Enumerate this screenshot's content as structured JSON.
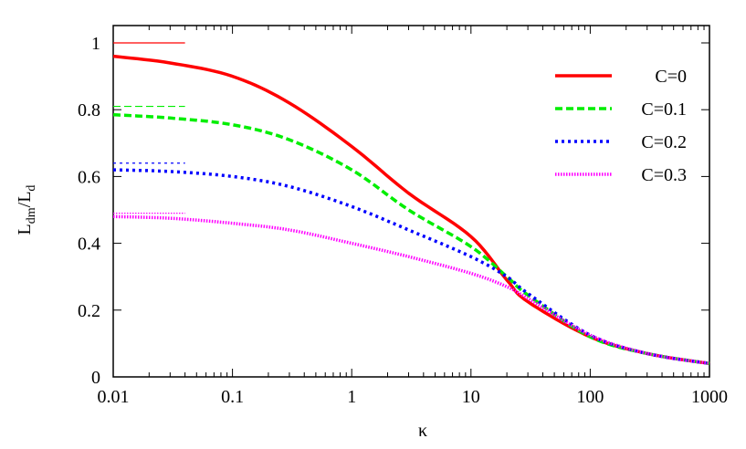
{
  "chart_data": {
    "type": "line",
    "title": "",
    "xlabel": "κ",
    "ylabel_main": "L",
    "ylabel_sub1": "dm",
    "ylabel_slash": "/L",
    "ylabel_sub2": "d",
    "x_scale": "log",
    "xlim": [
      0.01,
      1000
    ],
    "ylim": [
      0,
      1.05
    ],
    "grid": false,
    "legend_position": "top-right",
    "x_ticks": [
      {
        "value": 0.01,
        "label": "0.01"
      },
      {
        "value": 0.1,
        "label": "0.1"
      },
      {
        "value": 1,
        "label": "1"
      },
      {
        "value": 10,
        "label": "10"
      },
      {
        "value": 100,
        "label": "100"
      },
      {
        "value": 1000,
        "label": "1000"
      }
    ],
    "y_ticks": [
      {
        "value": 0,
        "label": "0"
      },
      {
        "value": 0.2,
        "label": "0.2"
      },
      {
        "value": 0.4,
        "label": "0.4"
      },
      {
        "value": 0.6,
        "label": "0.6"
      },
      {
        "value": 0.8,
        "label": "0.8"
      },
      {
        "value": 1,
        "label": "1"
      }
    ],
    "x": [
      0.01,
      0.03,
      0.1,
      0.3,
      1,
      3,
      10,
      20,
      30,
      100,
      300,
      1000
    ],
    "series": [
      {
        "name": "C=0",
        "color": "#ff0000",
        "dash": "solid",
        "values": [
          0.96,
          0.94,
          0.9,
          0.82,
          0.69,
          0.55,
          0.42,
          0.29,
          0.225,
          0.12,
          0.07,
          0.04
        ],
        "limit": 1.0
      },
      {
        "name": "C=0.1",
        "color": "#00ee00",
        "dash": "dashed",
        "values": [
          0.785,
          0.775,
          0.755,
          0.71,
          0.62,
          0.5,
          0.39,
          0.3,
          0.245,
          0.12,
          0.07,
          0.04
        ],
        "limit": 0.81
      },
      {
        "name": "C=0.2",
        "color": "#0000ff",
        "dash": "dotted",
        "values": [
          0.62,
          0.615,
          0.6,
          0.57,
          0.51,
          0.44,
          0.36,
          0.3,
          0.25,
          0.125,
          0.07,
          0.04
        ],
        "limit": 0.64
      },
      {
        "name": "C=0.3",
        "color": "#ff00ff",
        "dash": "fine-dotted",
        "values": [
          0.48,
          0.475,
          0.46,
          0.44,
          0.4,
          0.36,
          0.31,
          0.27,
          0.235,
          0.125,
          0.07,
          0.04
        ],
        "limit": 0.49
      }
    ],
    "limit_lines_xrange": [
      0.01,
      0.04
    ]
  }
}
